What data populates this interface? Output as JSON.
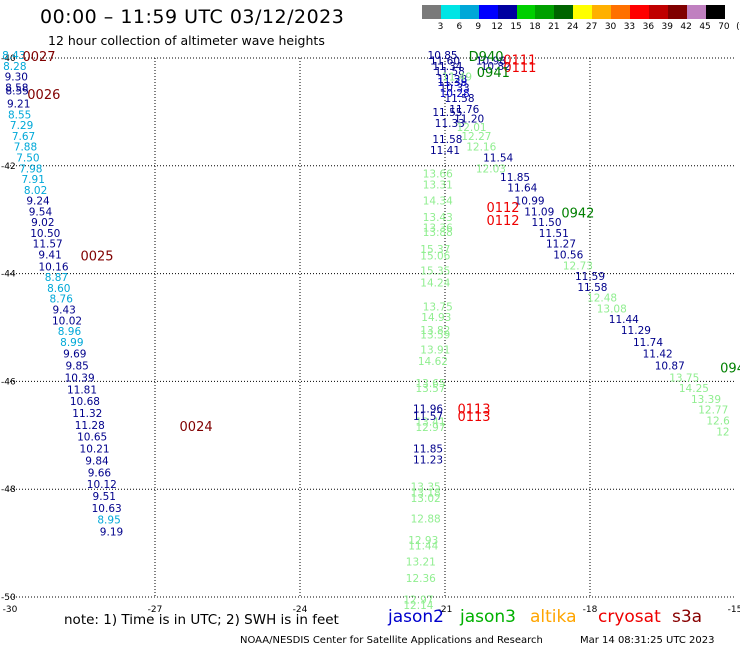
{
  "header": {
    "title": "00:00 – 11:59 UTC 03/12/2023",
    "subtitle": "12 hour collection of altimeter wave heights"
  },
  "colorbar": {
    "labels": [
      "3",
      "6",
      "9",
      "12",
      "15",
      "18",
      "21",
      "24",
      "27",
      "30",
      "33",
      "36",
      "39",
      "42",
      "45",
      "70",
      "(ft)"
    ],
    "colors": [
      "#7a7a7a",
      "#00e5e5",
      "#00a8d8",
      "#0000ff",
      "#0000a0",
      "#00d000",
      "#00a000",
      "#006400",
      "#ffff00",
      "#ffb000",
      "#ff7000",
      "#ff0000",
      "#c00000",
      "#800000",
      "#c080c0",
      "#000000"
    ]
  },
  "footer": {
    "note": "note:  1) Time is in UTC;  2) SWH is in feet",
    "credit": "NOAA/NESDIS Center for Satellite Applications and Research",
    "timestamp": "Mar 14 08:31:25 UTC 2023",
    "satellites": [
      {
        "name": "jason2",
        "color": "#0000cc"
      },
      {
        "name": "jason3",
        "color": "#00b000"
      },
      {
        "name": "altika",
        "color": "#ffa500"
      },
      {
        "name": "cryosat",
        "color": "#ee0000"
      },
      {
        "name": "s3a",
        "color": "#880000"
      }
    ]
  },
  "chart_data": {
    "type": "scatter",
    "xlim": [
      -30,
      -15
    ],
    "ylim": [
      -50,
      -40
    ],
    "xticks": [
      "-30",
      "-27",
      "-24",
      "-21",
      "-18",
      "-15"
    ],
    "yticks": [
      "-40",
      "-42",
      "-44",
      "-46",
      "-48",
      "-50"
    ],
    "grid": true,
    "tracks": [
      {
        "color": "#00a8d8",
        "points": [
          [
            -29.92,
            -40.02,
            "8.43"
          ],
          [
            -29.9,
            -40.22,
            "8.28"
          ]
        ]
      },
      {
        "color": "#00008b",
        "points": [
          [
            -29.87,
            -40.42,
            "9.30"
          ],
          [
            -29.86,
            -40.62,
            "8.58"
          ],
          [
            -29.85,
            -40.68,
            "8.55"
          ],
          [
            -29.82,
            -40.92,
            "9.21"
          ]
        ]
      },
      {
        "color": "#00a8d8",
        "points": [
          [
            -29.8,
            -41.12,
            "8.55"
          ],
          [
            -29.76,
            -41.32,
            "7.29"
          ],
          [
            -29.72,
            -41.52,
            "7.67"
          ],
          [
            -29.68,
            -41.72,
            "7.88"
          ],
          [
            -29.63,
            -41.92,
            "7.50"
          ],
          [
            -29.57,
            -42.12,
            "7.98"
          ],
          [
            -29.52,
            -42.32,
            "7.91"
          ],
          [
            -29.47,
            -42.52,
            "8.02"
          ]
        ]
      },
      {
        "color": "#00008b",
        "points": [
          [
            -29.42,
            -42.72,
            "9.24"
          ],
          [
            -29.37,
            -42.92,
            "9.54"
          ],
          [
            -29.32,
            -43.12,
            "9.02"
          ],
          [
            -29.27,
            -43.32,
            "10.50"
          ],
          [
            -29.22,
            -43.52,
            "11.57"
          ],
          [
            -29.17,
            -43.72,
            "9.41"
          ],
          [
            -29.1,
            -43.94,
            "10.16"
          ]
        ]
      },
      {
        "color": "#00a8d8",
        "points": [
          [
            -29.04,
            -44.14,
            "8.87"
          ],
          [
            -28.99,
            -44.34,
            "8.60"
          ],
          [
            -28.94,
            -44.54,
            "8.76"
          ]
        ]
      },
      {
        "color": "#00008b",
        "points": [
          [
            -28.88,
            -44.74,
            "9.43"
          ],
          [
            -28.82,
            -44.94,
            "10.02"
          ]
        ]
      },
      {
        "color": "#00a8d8",
        "points": [
          [
            -28.77,
            -45.14,
            "8.96"
          ],
          [
            -28.72,
            -45.34,
            "8.99"
          ]
        ]
      },
      {
        "color": "#00008b",
        "points": [
          [
            -28.66,
            -45.56,
            "9.69"
          ],
          [
            -28.61,
            -45.78,
            "9.85"
          ],
          [
            -28.56,
            -46.0,
            "10.39"
          ],
          [
            -28.51,
            -46.22,
            "11.81"
          ],
          [
            -28.45,
            -46.44,
            "10.68"
          ],
          [
            -28.4,
            -46.66,
            "11.32"
          ],
          [
            -28.35,
            -46.88,
            "11.28"
          ],
          [
            -28.3,
            -47.1,
            "10.65"
          ],
          [
            -28.25,
            -47.32,
            "10.21"
          ],
          [
            -28.2,
            -47.54,
            "9.84"
          ],
          [
            -28.15,
            -47.76,
            "9.66"
          ],
          [
            -28.1,
            -47.98,
            "10.12"
          ],
          [
            -28.05,
            -48.2,
            "9.51"
          ],
          [
            -28.0,
            -48.42,
            "10.63"
          ]
        ]
      },
      {
        "color": "#00a8d8",
        "points": [
          [
            -27.95,
            -48.64,
            "8.95"
          ]
        ]
      },
      {
        "color": "#00008b",
        "points": [
          [
            -27.9,
            -48.86,
            "9.19"
          ]
        ]
      },
      {
        "color": "#00008b",
        "points": [
          [
            -21.05,
            -40.02,
            "10.85"
          ],
          [
            -21.0,
            -40.12,
            "11.60"
          ],
          [
            -20.95,
            -40.22,
            "11.34"
          ],
          [
            -20.9,
            -40.32,
            "11.58"
          ],
          [
            -20.85,
            -40.46,
            "11.28"
          ],
          [
            -20.8,
            -40.62,
            "10.33"
          ],
          [
            -20.7,
            -40.82,
            "11.58"
          ],
          [
            -20.6,
            -41.02,
            "11.76"
          ],
          [
            -20.5,
            -41.2,
            "11.20"
          ]
        ]
      },
      {
        "color": "#0000cc",
        "points": [
          [
            -20.85,
            -40.52,
            "11.38"
          ],
          [
            -20.8,
            -40.72,
            "10.28"
          ]
        ]
      },
      {
        "color": "#00008b",
        "points": [
          [
            -20.95,
            -41.08,
            "11.55"
          ],
          [
            -20.9,
            -41.28,
            "11.33"
          ],
          [
            -20.95,
            -41.58,
            "11.58"
          ],
          [
            -21.0,
            -41.78,
            "11.41"
          ]
        ]
      },
      {
        "color": "#00008b",
        "points": [
          [
            -20.05,
            -40.12,
            "10.98"
          ],
          [
            -19.95,
            -40.22,
            "10.82"
          ]
        ]
      },
      {
        "color": "#90ee90",
        "points": [
          [
            -20.75,
            -40.42,
            "11.49"
          ],
          [
            -20.45,
            -41.35,
            "12.01"
          ],
          [
            -20.35,
            -41.52,
            "12.27"
          ],
          [
            -20.25,
            -41.72,
            "12.16"
          ]
        ]
      },
      {
        "color": "#00008b",
        "points": [
          [
            -19.9,
            -41.92,
            "11.54"
          ],
          [
            -19.55,
            -42.28,
            "11.85"
          ],
          [
            -19.4,
            -42.48,
            "11.64"
          ],
          [
            -19.25,
            -42.72,
            "10.99"
          ],
          [
            -19.05,
            -42.92,
            "11.09"
          ],
          [
            -18.9,
            -43.12,
            "11.50"
          ],
          [
            -18.75,
            -43.32,
            "11.51"
          ],
          [
            -18.6,
            -43.52,
            "11.27"
          ]
        ]
      },
      {
        "color": "#90ee90",
        "points": [
          [
            -20.05,
            -42.12,
            "12.03"
          ]
        ]
      },
      {
        "color": "#00008b",
        "points": [
          [
            -18.45,
            -43.72,
            "10.56"
          ],
          [
            -18.0,
            -44.12,
            "11.59"
          ],
          [
            -17.95,
            -44.32,
            "11.58"
          ]
        ]
      },
      {
        "color": "#90ee90",
        "points": [
          [
            -18.25,
            -43.92,
            "12.73"
          ],
          [
            -17.75,
            -44.52,
            "12.48"
          ],
          [
            -17.55,
            -44.72,
            "13.08"
          ]
        ]
      },
      {
        "color": "#00008b",
        "points": [
          [
            -17.3,
            -44.92,
            "11.44"
          ],
          [
            -17.05,
            -45.12,
            "11.29"
          ],
          [
            -16.8,
            -45.34,
            "11.74"
          ],
          [
            -16.6,
            -45.56,
            "11.42"
          ],
          [
            -16.35,
            -45.78,
            "10.87"
          ]
        ]
      },
      {
        "color": "#90ee90",
        "points": [
          [
            -16.05,
            -46.0,
            "13.75"
          ],
          [
            -15.85,
            -46.2,
            "14.25"
          ],
          [
            -15.6,
            -46.4,
            "13.39"
          ],
          [
            -15.45,
            -46.6,
            "12.77"
          ],
          [
            -15.35,
            -46.8,
            "12.6"
          ],
          [
            -15.25,
            -47.0,
            "12"
          ]
        ]
      },
      {
        "color": "#90ee90",
        "points": [
          [
            -21.15,
            -42.22,
            "13.66"
          ],
          [
            -21.15,
            -42.42,
            "13.31"
          ],
          [
            -21.15,
            -42.72,
            "14.34"
          ],
          [
            -21.15,
            -43.02,
            "13.43"
          ],
          [
            -21.15,
            -43.22,
            "13.36"
          ],
          [
            -21.15,
            -43.3,
            "13.88"
          ],
          [
            -21.2,
            -43.62,
            "15.37"
          ],
          [
            -21.2,
            -43.74,
            "15.06"
          ],
          [
            -21.2,
            -44.02,
            "15.35"
          ],
          [
            -21.2,
            -44.24,
            "14.24"
          ]
        ]
      },
      {
        "color": "#90ee90",
        "points": [
          [
            -21.15,
            -44.68,
            "13.75"
          ],
          [
            -21.18,
            -44.88,
            "14.93"
          ],
          [
            -21.2,
            -45.12,
            "13.82"
          ],
          [
            -21.2,
            -45.2,
            "13.59"
          ],
          [
            -21.2,
            -45.48,
            "13.91"
          ],
          [
            -21.25,
            -45.7,
            "14.62"
          ],
          [
            -21.3,
            -46.1,
            "13.65"
          ],
          [
            -21.3,
            -46.2,
            "13.57"
          ],
          [
            -21.3,
            -46.82,
            "13.41"
          ],
          [
            -21.3,
            -46.92,
            "12.97"
          ]
        ]
      },
      {
        "color": "#00008b",
        "points": [
          [
            -21.35,
            -46.58,
            "11.96"
          ],
          [
            -21.35,
            -46.72,
            "11.57"
          ],
          [
            -21.35,
            -47.32,
            "11.85"
          ],
          [
            -21.35,
            -47.52,
            "11.23"
          ]
        ]
      },
      {
        "color": "#90ee90",
        "points": [
          [
            -21.4,
            -48.02,
            "13.35"
          ],
          [
            -21.4,
            -48.14,
            "13.18"
          ],
          [
            -21.4,
            -48.24,
            "13.02"
          ],
          [
            -21.4,
            -48.62,
            "12.88"
          ],
          [
            -21.45,
            -49.02,
            "12.93"
          ],
          [
            -21.45,
            -49.12,
            "11.44"
          ],
          [
            -21.5,
            -49.42,
            "13.21"
          ],
          [
            -21.5,
            -49.72,
            "12.36"
          ],
          [
            -21.55,
            -50.12,
            "12.97"
          ],
          [
            -21.55,
            -50.22,
            "12.14"
          ]
        ]
      }
    ],
    "ids": [
      {
        "x": -29.4,
        "y": -40.02,
        "text": "0027",
        "color": "#800000"
      },
      {
        "x": -29.3,
        "y": -40.72,
        "text": "0026",
        "color": "#800000"
      },
      {
        "x": -28.2,
        "y": -43.72,
        "text": "0025",
        "color": "#800000"
      },
      {
        "x": -26.15,
        "y": -46.88,
        "text": "0024",
        "color": "#800000"
      },
      {
        "x": -20.15,
        "y": -40.02,
        "text": "D940",
        "color": "#008000"
      },
      {
        "x": -19.45,
        "y": -40.08,
        "text": "0111",
        "color": "#ee0000"
      },
      {
        "x": -19.45,
        "y": -40.22,
        "text": "0111",
        "color": "#ee0000"
      },
      {
        "x": -20.0,
        "y": -40.32,
        "text": "0941",
        "color": "#008000"
      },
      {
        "x": -19.8,
        "y": -42.82,
        "text": "0112",
        "color": "#ee0000"
      },
      {
        "x": -19.8,
        "y": -43.06,
        "text": "0112",
        "color": "#ee0000"
      },
      {
        "x": -18.25,
        "y": -42.92,
        "text": "0942",
        "color": "#008000"
      },
      {
        "x": -15.05,
        "y": -45.8,
        "text": "094",
        "color": "#008000"
      },
      {
        "x": -20.4,
        "y": -46.56,
        "text": "0113",
        "color": "#ee0000"
      },
      {
        "x": -20.4,
        "y": -46.7,
        "text": "0113",
        "color": "#ee0000"
      }
    ]
  }
}
